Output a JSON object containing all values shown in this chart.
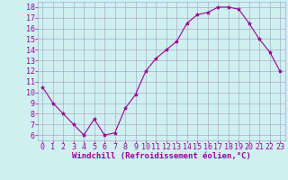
{
  "x": [
    0,
    1,
    2,
    3,
    4,
    5,
    6,
    7,
    8,
    9,
    10,
    11,
    12,
    13,
    14,
    15,
    16,
    17,
    18,
    19,
    20,
    21,
    22,
    23
  ],
  "y": [
    10.5,
    9.0,
    8.0,
    7.0,
    6.0,
    7.5,
    6.0,
    6.2,
    8.5,
    9.8,
    12.0,
    13.2,
    14.0,
    14.8,
    16.5,
    17.3,
    17.5,
    18.0,
    18.0,
    17.8,
    16.5,
    15.0,
    13.8,
    12.0
  ],
  "line_color": "#990099",
  "marker": "*",
  "marker_size": 3,
  "bg_color": "#cff0f0",
  "grid_color": "#aaaacc",
  "xlabel": "Windchill (Refroidissement éolien,°C)",
  "xlabel_color": "#990099",
  "ylabel_ticks": [
    6,
    7,
    8,
    9,
    10,
    11,
    12,
    13,
    14,
    15,
    16,
    17,
    18
  ],
  "xlim": [
    -0.5,
    23.5
  ],
  "ylim": [
    5.5,
    18.5
  ],
  "tick_color": "#990099",
  "xlabel_fontsize": 6.5,
  "tick_fontsize": 6.0
}
